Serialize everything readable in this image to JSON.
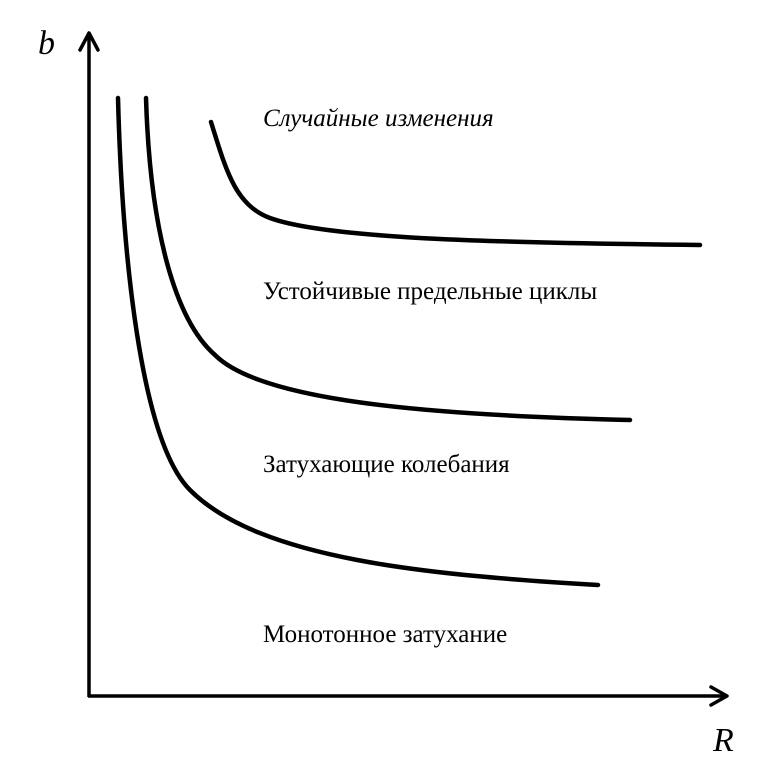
{
  "axes": {
    "y_label": "b",
    "x_label": "R"
  },
  "regions": [
    {
      "id": "random",
      "label": "Случайные изменения",
      "italic": true
    },
    {
      "id": "limit-cycles",
      "label": "Устойчивые предельные циклы",
      "italic": false
    },
    {
      "id": "damped",
      "label": "Затухающие колебания",
      "italic": false
    },
    {
      "id": "monotone",
      "label": "Монотонное затухание",
      "italic": false
    }
  ],
  "colors": {
    "ink": "#000000",
    "background": "#ffffff"
  }
}
